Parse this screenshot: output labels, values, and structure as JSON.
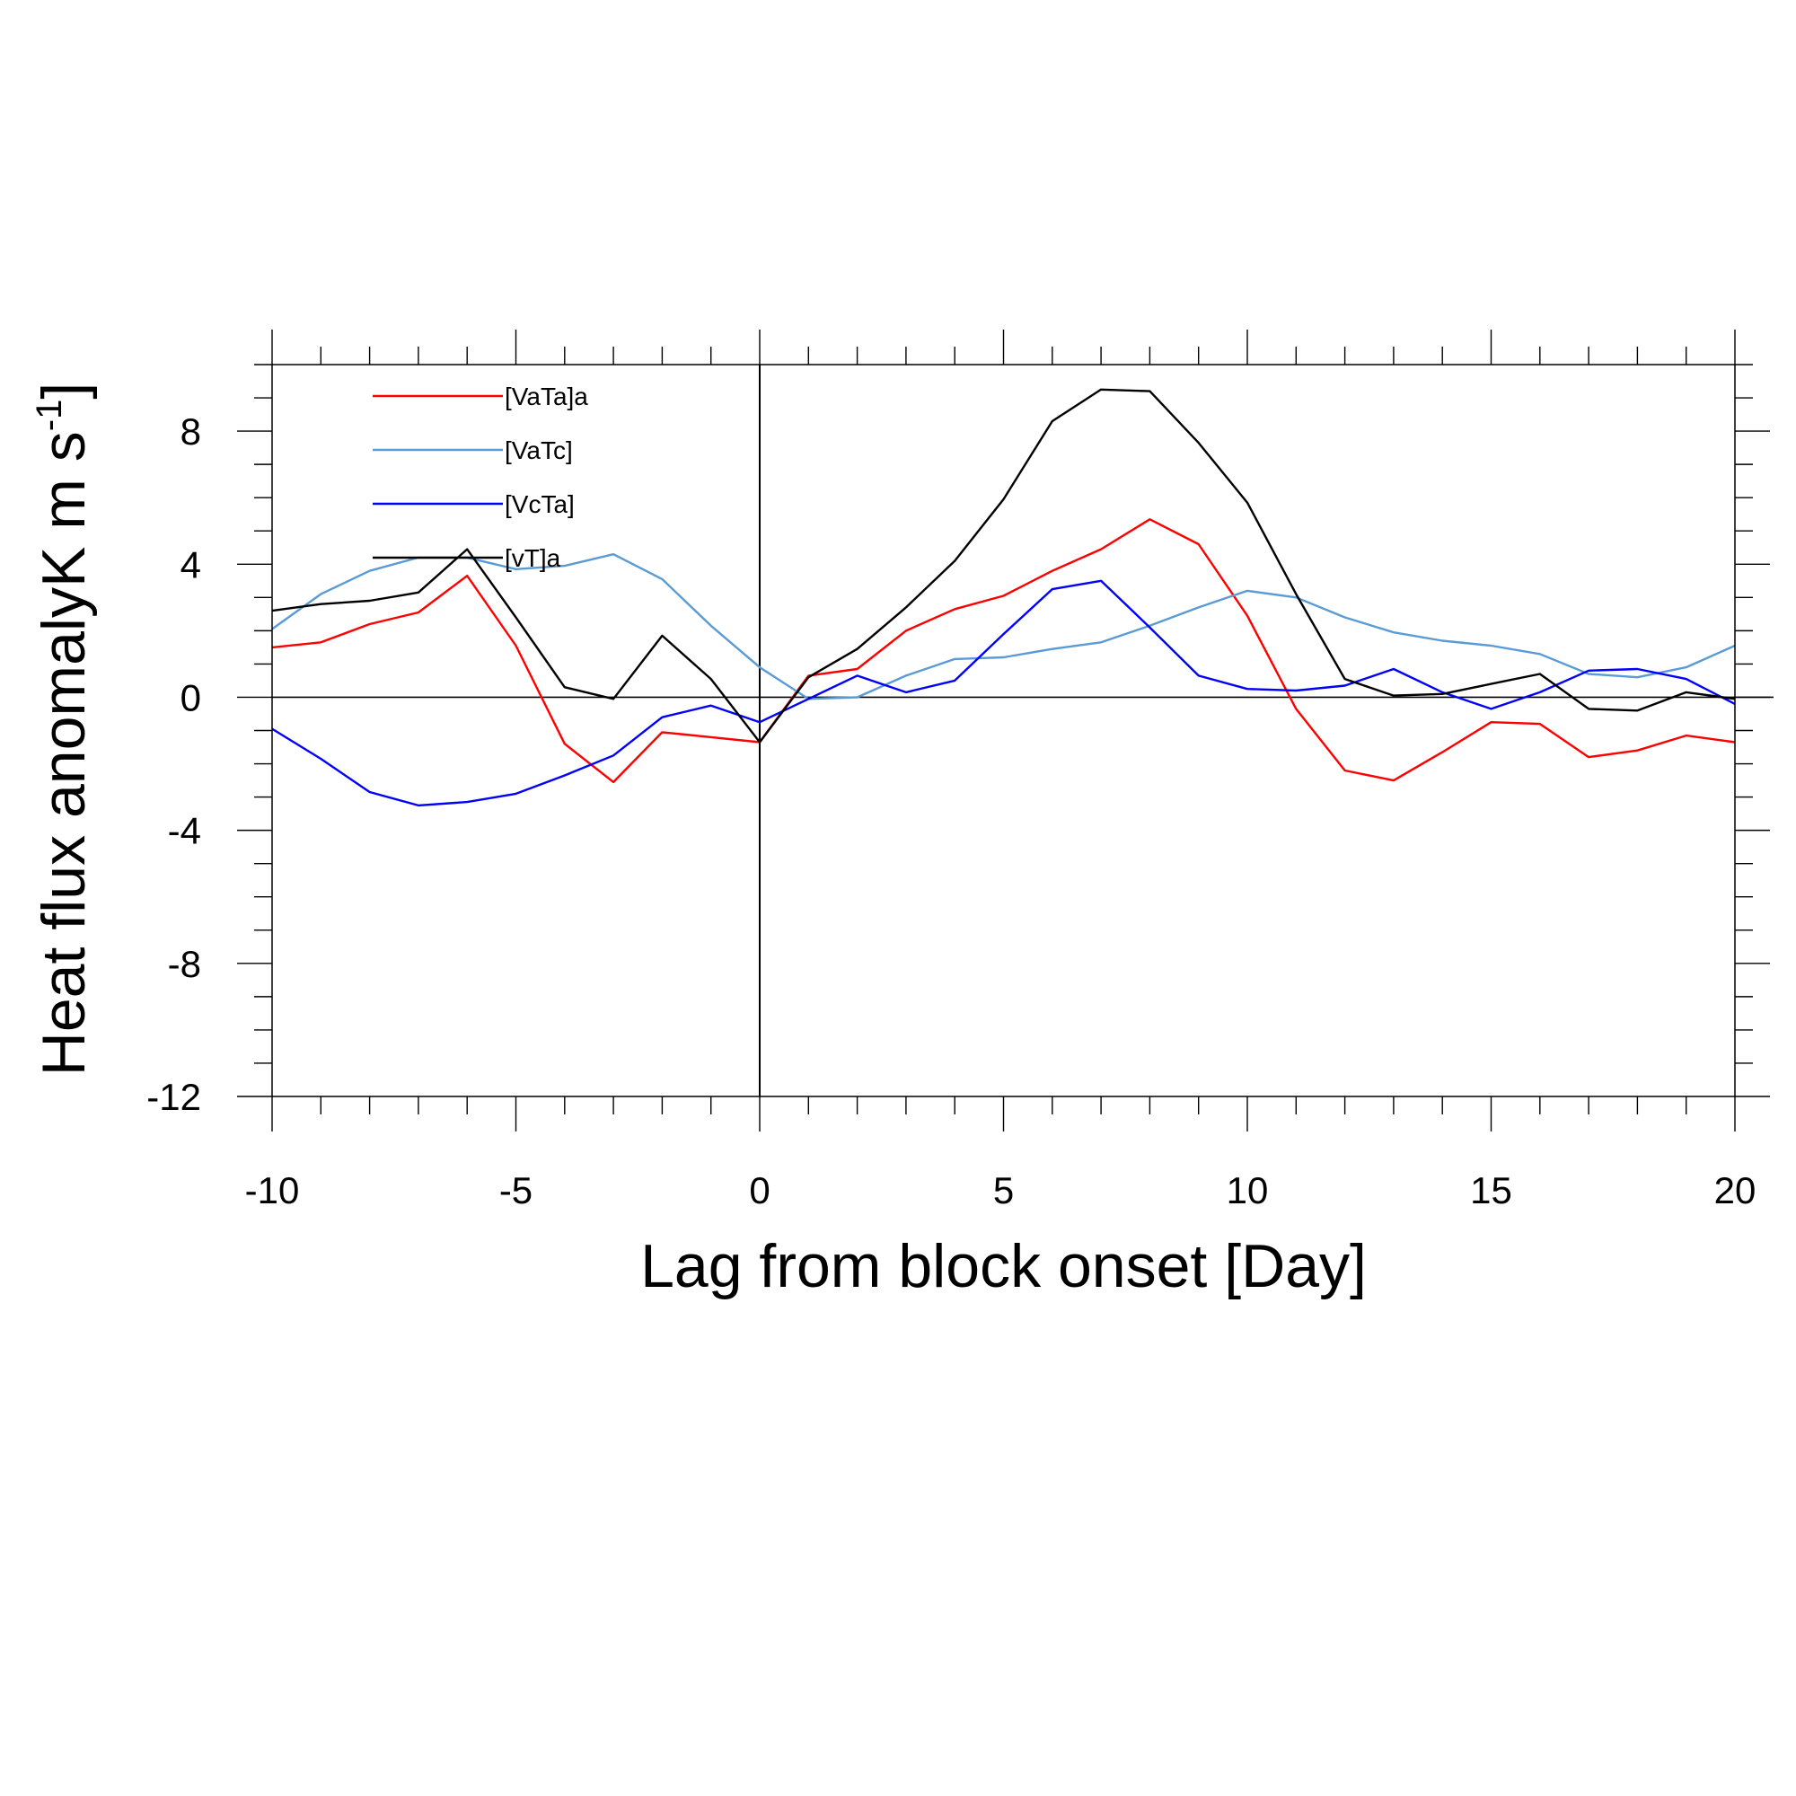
{
  "chart_data": {
    "type": "line",
    "xlabel": "Lag from block onset [Day]",
    "ylabel": {
      "main": "Heat flux anomalyK m s",
      "sup": "-1",
      "close": "]"
    },
    "xlim": [
      -10,
      20
    ],
    "ylim": [
      -12,
      10
    ],
    "x_ticks": [
      -10,
      -5,
      0,
      5,
      10,
      15,
      20
    ],
    "x_tick_labels": [
      "-10",
      "-5",
      "0",
      "5",
      "10",
      "15",
      "20"
    ],
    "y_ticks": [
      -12,
      -8,
      -4,
      0,
      4,
      8
    ],
    "y_tick_labels": [
      "-12",
      "-8",
      "-4",
      "0",
      "4",
      "8"
    ],
    "x_minor_step": 1,
    "y_minor_step": 1,
    "reference_lines": {
      "y": 0,
      "x": 0
    },
    "grid": false,
    "legend_position": "top-left",
    "x": [
      -10,
      -9,
      -8,
      -7,
      -6,
      -5,
      -4,
      -3,
      -2,
      -1,
      0,
      1,
      2,
      3,
      4,
      5,
      6,
      7,
      8,
      9,
      10,
      11,
      12,
      13,
      14,
      15,
      16,
      17,
      18,
      19,
      20
    ],
    "series": [
      {
        "name": "[VaTa]a",
        "color": "#ff0000",
        "values": [
          1.5,
          1.65,
          2.2,
          2.55,
          3.65,
          1.55,
          -1.4,
          -2.55,
          -1.05,
          -1.2,
          -1.35,
          0.65,
          0.85,
          2.0,
          2.65,
          3.05,
          3.8,
          4.45,
          5.35,
          4.6,
          2.45,
          -0.35,
          -2.2,
          -2.5,
          -1.65,
          -0.75,
          -0.8,
          -1.8,
          -1.6,
          -1.15,
          -1.35
        ]
      },
      {
        "name": "[VaTc]",
        "color": "#5b9bd5",
        "values": [
          2.05,
          3.1,
          3.8,
          4.2,
          4.2,
          3.85,
          3.95,
          4.3,
          3.55,
          2.15,
          0.9,
          -0.05,
          0.0,
          0.65,
          1.15,
          1.2,
          1.45,
          1.65,
          2.15,
          2.7,
          3.2,
          3.0,
          2.4,
          1.95,
          1.7,
          1.55,
          1.3,
          0.7,
          0.6,
          0.9,
          1.55
        ]
      },
      {
        "name": "[VcTa]",
        "color": "#0000ff",
        "values": [
          -0.95,
          -1.85,
          -2.85,
          -3.25,
          -3.15,
          -2.9,
          -2.35,
          -1.75,
          -0.6,
          -0.25,
          -0.75,
          -0.05,
          0.65,
          0.15,
          0.5,
          1.9,
          3.25,
          3.5,
          2.1,
          0.65,
          0.25,
          0.2,
          0.35,
          0.85,
          0.15,
          -0.35,
          0.15,
          0.8,
          0.85,
          0.55,
          -0.2
        ]
      },
      {
        "name": "[vT]a",
        "color": "#000000",
        "values": [
          2.6,
          2.8,
          2.9,
          3.15,
          4.45,
          2.4,
          0.3,
          -0.05,
          1.85,
          0.55,
          -1.35,
          0.6,
          1.45,
          2.7,
          4.1,
          5.95,
          8.3,
          9.25,
          9.2,
          7.65,
          5.85,
          3.1,
          0.55,
          0.05,
          0.1,
          0.4,
          0.7,
          -0.35,
          -0.4,
          0.15,
          -0.05
        ]
      }
    ]
  }
}
